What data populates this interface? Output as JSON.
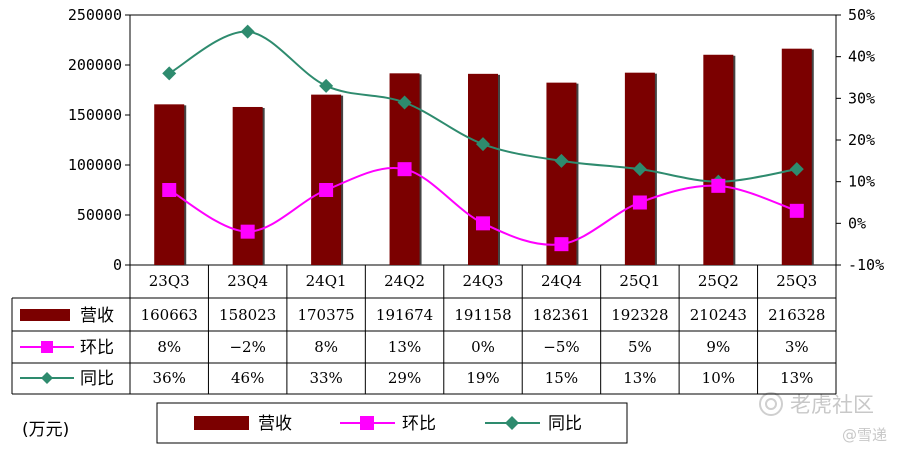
{
  "chart_data": {
    "type": "bar",
    "categories": [
      "23Q3",
      "23Q4",
      "24Q1",
      "24Q2",
      "24Q3",
      "24Q4",
      "25Q1",
      "25Q2",
      "25Q3"
    ],
    "series": [
      {
        "name": "营收",
        "kind": "bar",
        "axis": "left",
        "color": "#7b0000",
        "values": [
          160663,
          158023,
          170375,
          191674,
          191158,
          182361,
          192328,
          210243,
          216328
        ],
        "labels": [
          "160663",
          "158023",
          "170375",
          "191674",
          "191158",
          "182361",
          "192328",
          "210243",
          "216328"
        ]
      },
      {
        "name": "环比",
        "kind": "line",
        "axis": "right",
        "color": "#ff00ff",
        "marker": "square",
        "values": [
          8,
          -2,
          8,
          13,
          0,
          -5,
          5,
          9,
          3
        ],
        "labels": [
          "8%",
          "−2%",
          "8%",
          "13%",
          "0%",
          "−5%",
          "5%",
          "9%",
          "3%"
        ]
      },
      {
        "name": "同比",
        "kind": "line",
        "axis": "right",
        "color": "#2e8b6e",
        "marker": "diamond",
        "values": [
          36,
          46,
          33,
          29,
          19,
          15,
          13,
          10,
          13
        ],
        "labels": [
          "36%",
          "46%",
          "33%",
          "29%",
          "19%",
          "15%",
          "13%",
          "10%",
          "13%"
        ]
      }
    ],
    "left_axis": {
      "min": 0,
      "max": 250000,
      "step": 50000,
      "ticks": [
        "0",
        "50000",
        "100000",
        "150000",
        "200000",
        "250000"
      ]
    },
    "right_axis": {
      "min": -10,
      "max": 50,
      "step": 10,
      "ticks": [
        "-10%",
        "0%",
        "10%",
        "20%",
        "30%",
        "40%",
        "50%"
      ]
    },
    "unit_label": "(万元)",
    "legend": {
      "placement": "bottom"
    },
    "grid": false
  },
  "watermark": {
    "brand": "老虎社区",
    "source": "@雪递"
  }
}
